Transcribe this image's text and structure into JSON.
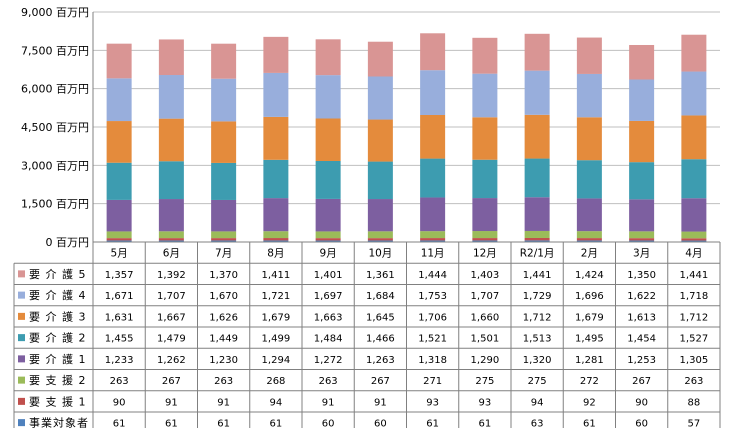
{
  "chart_data": {
    "type": "bar",
    "stacked": true,
    "categories": [
      "5月",
      "6月",
      "7月",
      "8月",
      "9月",
      "10月",
      "11月",
      "12月",
      "R2/1月",
      "2月",
      "3月",
      "4月"
    ],
    "y_unit": "百万円",
    "ylim": [
      0,
      9000
    ],
    "y_ticks": [
      0,
      1500,
      3000,
      4500,
      6000,
      7500,
      9000
    ],
    "y_tick_labels": [
      "0 百万円",
      "1,500 百万円",
      "3,000 百万円",
      "4,500 百万円",
      "6,000 百万円",
      "7,500 百万円",
      "9,000 百万円"
    ],
    "grid": true,
    "legend": "data-table",
    "series": [
      {
        "name": "事業対象者",
        "color": "#4f81bd",
        "values": [
          61,
          61,
          61,
          61,
          60,
          60,
          61,
          61,
          63,
          61,
          60,
          57
        ]
      },
      {
        "name": "要 支 援 1",
        "color": "#c0504d",
        "values": [
          90,
          91,
          91,
          94,
          91,
          91,
          93,
          93,
          94,
          92,
          90,
          88
        ]
      },
      {
        "name": "要 支 援 2",
        "color": "#9bbb59",
        "values": [
          263,
          267,
          263,
          268,
          263,
          267,
          271,
          275,
          275,
          272,
          267,
          263
        ]
      },
      {
        "name": "要 介 護 1",
        "color": "#7d5fa0",
        "values": [
          1233,
          1262,
          1230,
          1294,
          1272,
          1263,
          1318,
          1290,
          1320,
          1281,
          1253,
          1305
        ]
      },
      {
        "name": "要 介 護 2",
        "color": "#3d9cb0",
        "values": [
          1455,
          1479,
          1449,
          1499,
          1484,
          1466,
          1521,
          1501,
          1513,
          1495,
          1454,
          1527
        ]
      },
      {
        "name": "要 介 護 3",
        "color": "#e48b3c",
        "values": [
          1631,
          1667,
          1626,
          1679,
          1663,
          1645,
          1706,
          1660,
          1712,
          1679,
          1613,
          1712
        ]
      },
      {
        "name": "要 介 護 4",
        "color": "#98aedc",
        "values": [
          1671,
          1707,
          1670,
          1721,
          1697,
          1684,
          1753,
          1707,
          1729,
          1696,
          1622,
          1718
        ]
      },
      {
        "name": "要 介 護 5",
        "color": "#d99594",
        "values": [
          1357,
          1392,
          1370,
          1411,
          1401,
          1361,
          1444,
          1403,
          1441,
          1424,
          1350,
          1441
        ]
      }
    ],
    "table_rows": [
      {
        "name": "要 介 護 5",
        "cells": [
          "1,357",
          "1,392",
          "1,370",
          "1,411",
          "1,401",
          "1,361",
          "1,444",
          "1,403",
          "1,441",
          "1,424",
          "1,350",
          "1,441"
        ]
      },
      {
        "name": "要 介 護 4",
        "cells": [
          "1,671",
          "1,707",
          "1,670",
          "1,721",
          "1,697",
          "1,684",
          "1,753",
          "1,707",
          "1,729",
          "1,696",
          "1,622",
          "1,718"
        ]
      },
      {
        "name": "要 介 護 3",
        "cells": [
          "1,631",
          "1,667",
          "1,626",
          "1,679",
          "1,663",
          "1,645",
          "1,706",
          "1,660",
          "1,712",
          "1,679",
          "1,613",
          "1,712"
        ]
      },
      {
        "name": "要 介 護 2",
        "cells": [
          "1,455",
          "1,479",
          "1,449",
          "1,499",
          "1,484",
          "1,466",
          "1,521",
          "1,501",
          "1,513",
          "1,495",
          "1,454",
          "1,527"
        ]
      },
      {
        "name": "要 介 護 1",
        "cells": [
          "1,233",
          "1,262",
          "1,230",
          "1,294",
          "1,272",
          "1,263",
          "1,318",
          "1,290",
          "1,320",
          "1,281",
          "1,253",
          "1,305"
        ]
      },
      {
        "name": "要 支 援 2",
        "cells": [
          "263",
          "267",
          "263",
          "268",
          "263",
          "267",
          "271",
          "275",
          "275",
          "272",
          "267",
          "263"
        ]
      },
      {
        "name": "要 支 援 1",
        "cells": [
          "90",
          "91",
          "91",
          "94",
          "91",
          "91",
          "93",
          "93",
          "94",
          "92",
          "90",
          "88"
        ]
      },
      {
        "name": "事業対象者",
        "cells": [
          "61",
          "61",
          "61",
          "61",
          "60",
          "60",
          "61",
          "61",
          "63",
          "61",
          "60",
          "57"
        ]
      }
    ]
  }
}
